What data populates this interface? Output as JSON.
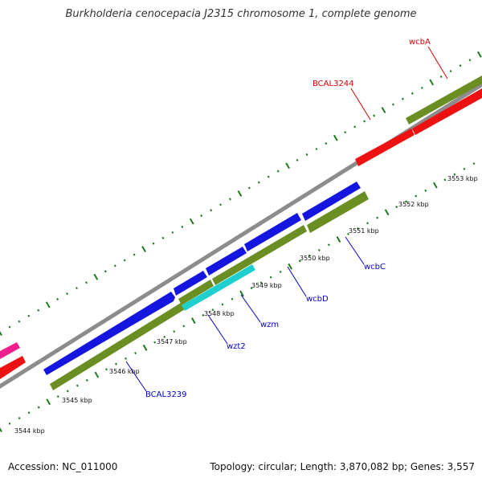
{
  "title": "Burkholderia cenocepacia J2315 chromosome 1, complete genome",
  "footer": {
    "accession": "Accession: NC_011000",
    "summary": "Topology: circular; Length: 3,870,082 bp; Genes: 3,557"
  },
  "colors": {
    "backbone": "#8c8c8c",
    "tick": "#1f7a1f",
    "gene_plus_blue": "#1515e0",
    "gene_olive": "#6b8e23",
    "gene_cyan": "#1fcfcf",
    "gene_red": "#ee1111",
    "gene_pink": "#ee1e8c",
    "label_blue": "#0000cc",
    "label_red": "#dd0000"
  },
  "scale": {
    "ticks": [
      {
        "label": "3544 kbp"
      },
      {
        "label": "3545 kbp"
      },
      {
        "label": "3546 kbp"
      },
      {
        "label": "3547 kbp"
      },
      {
        "label": "3548 kbp"
      },
      {
        "label": "3549 kbp"
      },
      {
        "label": "3550 kbp"
      },
      {
        "label": "3551 kbp"
      },
      {
        "label": "3552 kbp"
      },
      {
        "label": "3553 kbp"
      }
    ]
  },
  "genes": [
    {
      "name": "BCAL3239"
    },
    {
      "name": "wzt2"
    },
    {
      "name": "wzm"
    },
    {
      "name": "wcbD"
    },
    {
      "name": "wcbC"
    },
    {
      "name": "BCAL3244"
    },
    {
      "name": "wcbA"
    }
  ]
}
